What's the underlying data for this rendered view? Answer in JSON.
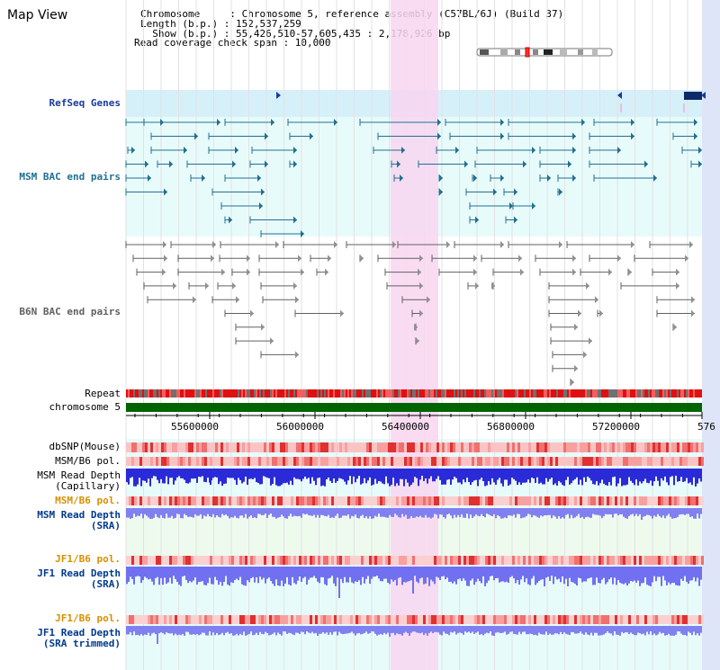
{
  "page": {
    "title": "Map View",
    "info_lines": [
      "Chromosome     : Chromosome 5, reference assembly (C57BL/6J) (Build 37)",
      "Length (b.p.) : 152,537,259",
      "  Show (b.p.) : 55,426,510-57,605,435 : 2,178,926 bp",
      "Read coverage check span : 10,000"
    ]
  },
  "colors": {
    "refseq_bg": "#d6f0fa",
    "bac_bg": "#e8fbfb",
    "highlight": "#f8d6f0",
    "chromosome_bar": "#006400",
    "msm_read_depth": "#2a2ad8",
    "jf1_read_depth": "#8080f0",
    "msm_label": "#003a8c",
    "jf1_label": "#d89000",
    "refseq_label": "#1a3a9a",
    "bac_msm_color": "#207090",
    "bac_b6n_color": "#606060"
  },
  "tracks": {
    "refseq": {
      "label": "RefSeq Genes"
    },
    "msm_bac": {
      "label": "MSM BAC end pairs"
    },
    "b6n_bac": {
      "label": "B6N BAC end pairs"
    },
    "repeat": {
      "label": "Repeat"
    },
    "chromosome": {
      "label": "chromosome 5"
    },
    "dbsnp": {
      "label": "dbSNP(Mouse)"
    },
    "msm_b6_pol_1": {
      "label": "MSM/B6 pol."
    },
    "msm_read_depth_cap": {
      "label_1": "MSM Read Depth",
      "label_2": "(Capillary)"
    },
    "msm_b6_pol_2": {
      "label": "MSM/B6 pol."
    },
    "msm_read_depth_sra": {
      "label_1": "MSM Read Depth",
      "label_2": "(SRA)"
    },
    "jf1_b6_pol_1": {
      "label": "JF1/B6 pol."
    },
    "jf1_read_depth_sra": {
      "label_1": "JF1 Read Depth",
      "label_2": "(SRA)"
    },
    "jf1_b6_pol_2": {
      "label": "JF1/B6 pol."
    },
    "jf1_read_depth_trim": {
      "label_1": "JF1 Read Depth",
      "label_2": "(SRA trimmed)"
    }
  },
  "axis": {
    "ticks": [
      "55600000",
      "56000000",
      "56400000",
      "56800000",
      "57200000",
      "576"
    ],
    "range_bp": [
      55426510,
      57605435
    ]
  }
}
